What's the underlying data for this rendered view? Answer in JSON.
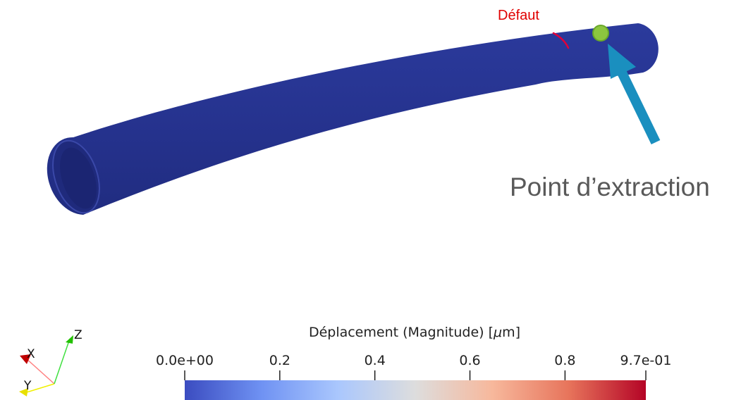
{
  "annotations": {
    "defect_label": "Défaut",
    "extraction_label": "Point d’extraction"
  },
  "colorbar": {
    "title_prefix": "Déplacement (Magnitude) [",
    "title_unit_symbol": "μ",
    "title_unit_rest": "m]",
    "tick_labels": [
      "0.0e+00",
      "0.2",
      "0.4",
      "0.6",
      "0.8",
      "9.7e-01"
    ],
    "tick_values": [
      0,
      0.2,
      0.4,
      0.6,
      0.8,
      0.97
    ],
    "range": [
      0,
      0.97
    ],
    "colormap": [
      "#3b4cc0",
      "#6f92f3",
      "#aac7fd",
      "#dddddd",
      "#f7b89c",
      "#e7745b",
      "#b40426"
    ]
  },
  "axes": {
    "x_label": "X",
    "y_label": "Y",
    "z_label": "Z",
    "x_color": "#e00000",
    "y_color": "#e8e000",
    "z_color": "#22c000"
  },
  "colors": {
    "tube": "#26338f",
    "tube_inner": "#1c2777",
    "defect": "#e0003a",
    "defect_text": "#e00000",
    "marker": "#8cc63f",
    "arrow": "#1a8fbf",
    "extraction_text": "#595959"
  }
}
